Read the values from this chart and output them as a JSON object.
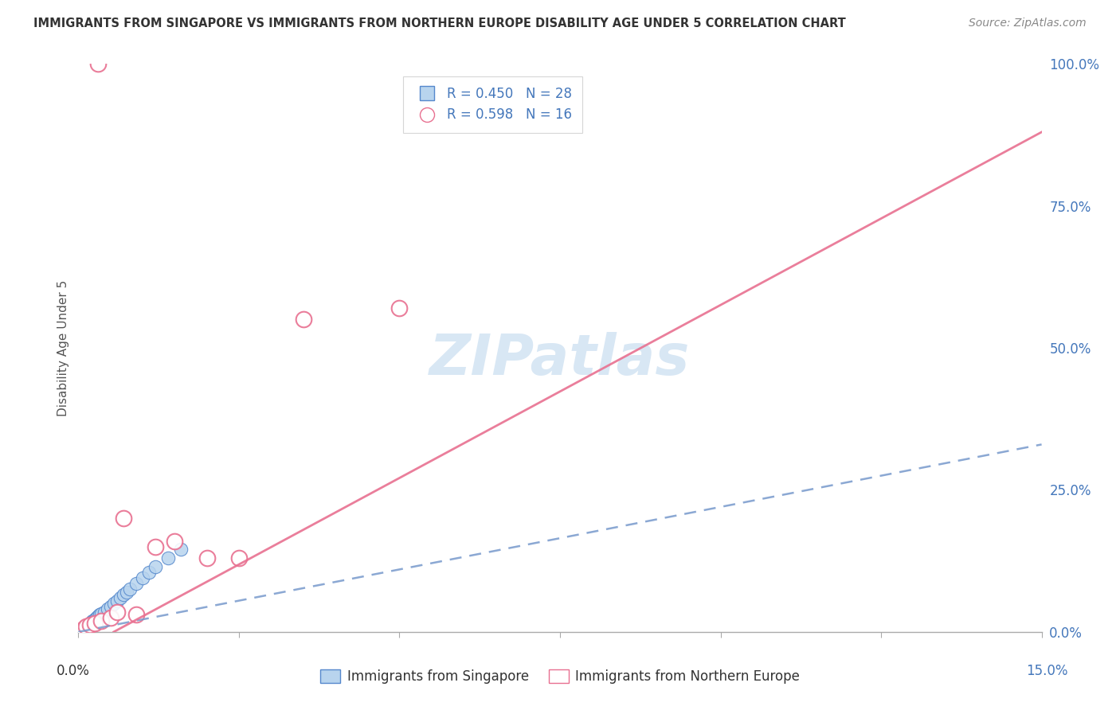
{
  "title": "IMMIGRANTS FROM SINGAPORE VS IMMIGRANTS FROM NORTHERN EUROPE DISABILITY AGE UNDER 5 CORRELATION CHART",
  "source": "Source: ZipAtlas.com",
  "ylabel": "Disability Age Under 5",
  "right_yvalues": [
    0.0,
    25.0,
    50.0,
    75.0,
    100.0
  ],
  "xlim": [
    0.0,
    15.0
  ],
  "ylim": [
    0.0,
    100.0
  ],
  "singapore_R": 0.45,
  "singapore_N": 28,
  "northern_europe_R": 0.598,
  "northern_europe_N": 16,
  "sg_fill_color": "#b8d4ee",
  "sg_edge_color": "#5588cc",
  "ne_fill_color": "#f8c0cc",
  "ne_edge_color": "#e87090",
  "sg_line_color": "#7799cc",
  "ne_line_color": "#e87090",
  "watermark_color": "#c8ddf0",
  "grid_color": "#ddddee",
  "sg_points_x": [
    0.05,
    0.08,
    0.1,
    0.12,
    0.15,
    0.18,
    0.2,
    0.22,
    0.25,
    0.28,
    0.3,
    0.33,
    0.35,
    0.4,
    0.45,
    0.5,
    0.55,
    0.6,
    0.65,
    0.7,
    0.75,
    0.8,
    0.9,
    1.0,
    1.1,
    1.2,
    1.4,
    1.6
  ],
  "sg_points_y": [
    0.3,
    0.5,
    0.8,
    1.0,
    1.2,
    1.5,
    1.8,
    2.0,
    2.2,
    2.5,
    2.8,
    3.0,
    3.2,
    3.5,
    4.0,
    4.5,
    5.0,
    5.5,
    6.0,
    6.5,
    7.0,
    7.5,
    8.5,
    9.5,
    10.5,
    11.5,
    13.0,
    14.5
  ],
  "ne_points_x": [
    0.08,
    0.12,
    0.18,
    0.25,
    0.35,
    0.5,
    0.7,
    0.9,
    1.2,
    1.5,
    2.0,
    2.5,
    3.5,
    5.0,
    0.3,
    0.6
  ],
  "ne_points_y": [
    0.5,
    1.0,
    1.2,
    1.5,
    2.0,
    2.5,
    20.0,
    3.0,
    15.0,
    16.0,
    13.0,
    13.0,
    55.0,
    57.0,
    100.0,
    3.5
  ],
  "sg_line_x": [
    0.0,
    15.0
  ],
  "sg_line_y": [
    0.0,
    33.0
  ],
  "ne_line_x": [
    0.55,
    15.0
  ],
  "ne_line_y": [
    0.0,
    88.0
  ],
  "legend_items": [
    {
      "label": "Immigrants from Singapore",
      "R": "0.450",
      "N": "28"
    },
    {
      "label": "Immigrants from Northern Europe",
      "R": "0.598",
      "N": "16"
    }
  ]
}
